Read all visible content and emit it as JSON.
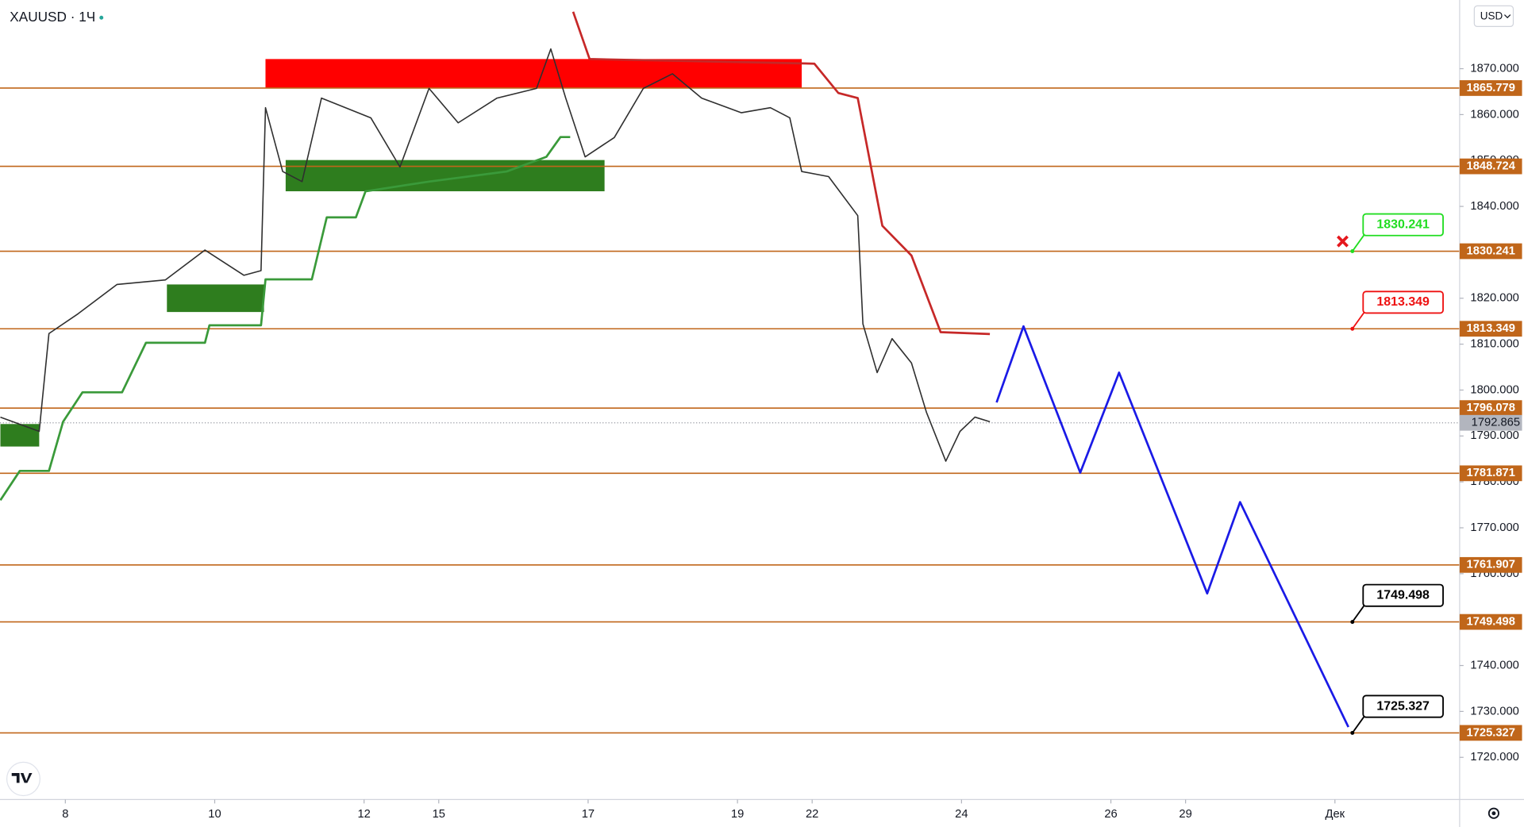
{
  "chart_data": {
    "type": "line",
    "title": "XAUUSD · 1Ч",
    "currency": "USD",
    "xlim": [
      7.125,
      32.67
    ],
    "xticks": [
      8,
      10,
      12,
      15,
      17,
      19,
      22,
      24,
      26,
      29,
      {
        "value": 31,
        "label": "Дек"
      }
    ],
    "ylim": [
      1710.81,
      1884.96
    ],
    "yticks": [
      {
        "value": 1870,
        "label": "1870.000"
      },
      {
        "value": 1860,
        "label": "1860.000"
      },
      {
        "value": 1850,
        "label": "1850.000"
      },
      {
        "value": 1840,
        "label": "1840.000"
      },
      {
        "value": 1820,
        "label": "1820.000"
      },
      {
        "value": 1810,
        "label": "1810.000"
      },
      {
        "value": 1800,
        "label": "1800.000"
      },
      {
        "value": 1790,
        "label": "1790.000"
      },
      {
        "value": 1780,
        "label": "1780.000"
      },
      {
        "value": 1770,
        "label": "1770.000"
      },
      {
        "value": 1760,
        "label": "1760.000"
      },
      {
        "value": 1740,
        "label": "1740.000"
      },
      {
        "value": 1730,
        "label": "1730.000"
      },
      {
        "value": 1720,
        "label": "1720.000"
      }
    ],
    "level_color": "#c0661a",
    "levels": [
      1865.779,
      1848.724,
      1830.241,
      1813.349,
      1796.078,
      1781.871,
      1761.907,
      1749.498,
      1725.327
    ],
    "last_price": 1792.865,
    "zones": [
      {
        "x": [
          10.68,
          19.86
        ],
        "y": [
          1865.7,
          1872.1
        ],
        "color": "#ff0000"
      },
      {
        "x": [
          10.95,
          17.22
        ],
        "y": [
          1843.3,
          1850.1
        ],
        "color": "#2e7d1e"
      },
      {
        "x": [
          9.36,
          10.66
        ],
        "y": [
          1817,
          1823
        ],
        "color": "#2e7d1e"
      },
      {
        "x": [
          7.13,
          7.65
        ],
        "y": [
          1787.7,
          1792.6
        ],
        "color": "#2e7d1e"
      }
    ],
    "series": [
      {
        "color": "#2f2f2f",
        "x": [
          7.13,
          7.65,
          7.78,
          8.17,
          8.69,
          9.34,
          9.87,
          10.39,
          10.62,
          10.68,
          10.91,
          11.17,
          11.43,
          12.09,
          12.48,
          12.87,
          15.26,
          15.78,
          16.31,
          16.5,
          16.7,
          16.96,
          17.35,
          17.74,
          18.13,
          18.52,
          19.05,
          19.44,
          19.7,
          19.86,
          22.22,
          22.61,
          22.68,
          22.87,
          23.07,
          23.33,
          23.53,
          23.79,
          23.98,
          24.18,
          24.38
        ],
        "values": [
          1794.1,
          1791,
          1812.3,
          1816.6,
          1823,
          1824,
          1830.5,
          1825,
          1826,
          1861.5,
          1847.6,
          1845.4,
          1863.6,
          1859.3,
          1848.6,
          1865.7,
          1858.2,
          1863.6,
          1865.7,
          1874.3,
          1863.6,
          1850.8,
          1855,
          1865.7,
          1868.9,
          1863.6,
          1860.4,
          1861.5,
          1859.3,
          1847.6,
          1846.5,
          1838,
          1814.4,
          1803.8,
          1811.2,
          1805.9,
          1795.2,
          1784.5,
          1791,
          1794.1,
          1793.1
        ]
      },
      {
        "color": "#3a9a3a",
        "x": [
          7.13,
          7.39,
          7.78,
          7.97,
          8.23,
          8.76,
          9.08,
          9.87,
          9.93,
          10.62,
          10.68,
          11.3,
          11.5,
          11.89,
          12.02,
          12.87,
          15.91,
          16.44,
          16.63,
          16.76
        ],
        "values": [
          1776,
          1782.4,
          1782.4,
          1793.1,
          1799.5,
          1799.5,
          1810.3,
          1810.3,
          1814.1,
          1814.1,
          1824.1,
          1824.1,
          1837.6,
          1837.6,
          1843.3,
          1845.4,
          1847.6,
          1850.8,
          1855.1,
          1855.1
        ]
      },
      {
        "color": "#c62828",
        "x": [
          16.8,
          17.02,
          22.03,
          22.35,
          22.61,
          22.94,
          23.33,
          23.72,
          24.38
        ],
        "values": [
          1882.4,
          1872.1,
          1871.1,
          1864.7,
          1863.6,
          1835.8,
          1829.3,
          1812.6,
          1812.2
        ]
      },
      {
        "color": "#1a1ae6",
        "x": [
          24.47,
          24.83,
          25.59,
          26.11,
          29.29,
          29.73,
          31.18
        ],
        "values": [
          1797.3,
          1813.9,
          1782,
          1803.8,
          1755.7,
          1775.6,
          1726.6
        ]
      }
    ],
    "annotations": [
      {
        "value": 1830.241,
        "color": "#22dd22"
      },
      {
        "value": 1813.349,
        "color": "#ee1111"
      },
      {
        "value": 1749.498,
        "color": "#000000"
      },
      {
        "value": 1725.327,
        "color": "#000000"
      }
    ]
  }
}
